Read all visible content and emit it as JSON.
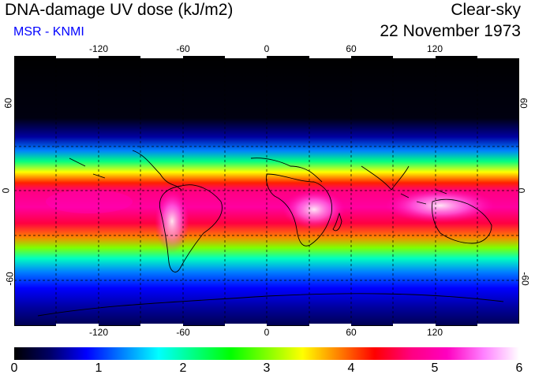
{
  "header": {
    "title": "DNA-damage UV dose (kJ/m2)",
    "subtitle": "MSR - KNMI",
    "condition": "Clear-sky",
    "date": "22 November 1973"
  },
  "axes": {
    "longitude_ticks": [
      "-120",
      "-60",
      "0",
      "60",
      "120"
    ],
    "latitude_ticks": [
      "60",
      "0",
      "-60"
    ]
  },
  "colorbar": {
    "ticks": [
      "0",
      "1",
      "2",
      "3",
      "4",
      "5",
      "6"
    ],
    "colors": [
      "#000000",
      "#000066",
      "#0000ff",
      "#0080ff",
      "#00ffff",
      "#00ff80",
      "#00ff00",
      "#80ff00",
      "#ffff00",
      "#ff8000",
      "#ff0000",
      "#ff0080",
      "#ff00c0",
      "#ff80ff",
      "#ffffff"
    ]
  },
  "map": {
    "lon_range": [
      -180,
      180
    ],
    "lat_range": [
      -90,
      90
    ],
    "field_colors": {
      "polar_north": "#000000",
      "tropics": "#ff0080",
      "peak": "#ffffff"
    }
  }
}
